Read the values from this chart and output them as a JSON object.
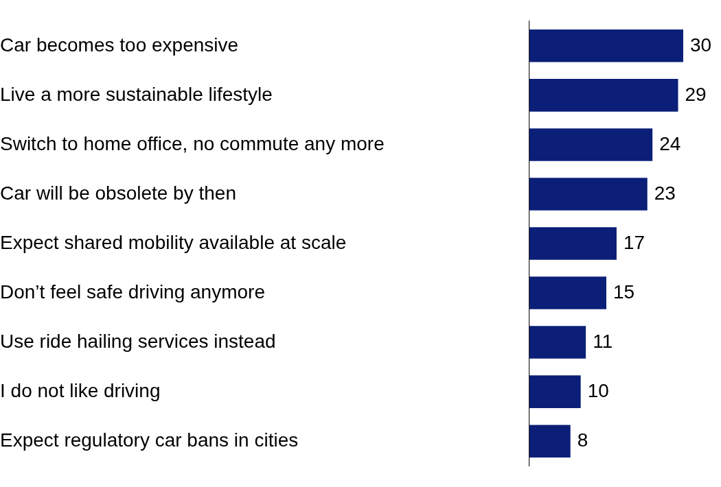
{
  "chart_data": {
    "type": "bar",
    "orientation": "horizontal",
    "categories": [
      "Car becomes too expensive",
      "Live a more sustainable lifestyle",
      "Switch to home office, no commute any more",
      "Car will be obsolete by then",
      "Expect shared mobility available at scale",
      "Don’t feel safe driving anymore",
      "Use ride hailing services instead",
      "I do not like driving",
      "Expect regulatory car bans in cities"
    ],
    "values": [
      30,
      29,
      24,
      23,
      17,
      15,
      11,
      10,
      8
    ],
    "color": "#0b1f78",
    "tick_labels": "y",
    "data_labels": true,
    "grid": false,
    "legend": false
  }
}
